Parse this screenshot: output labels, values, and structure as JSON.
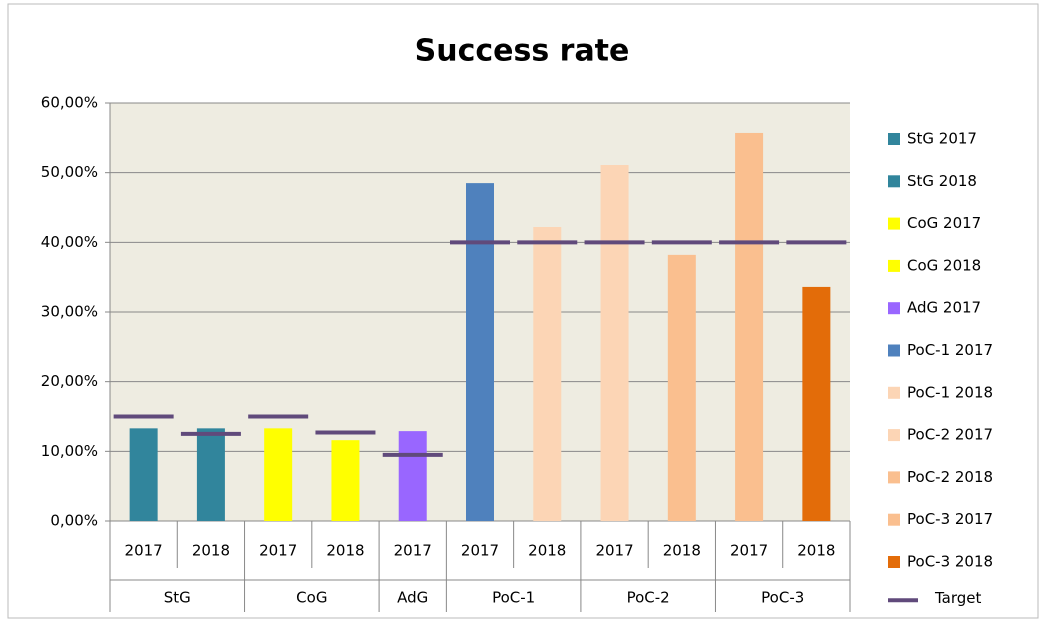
{
  "chart_data": {
    "type": "bar",
    "title": "Success rate",
    "category_groups": [
      {
        "name": "StG",
        "categories": [
          "2017",
          "2018"
        ]
      },
      {
        "name": "CoG",
        "categories": [
          "2017",
          "2018"
        ]
      },
      {
        "name": "AdG",
        "categories": [
          "2017"
        ]
      },
      {
        "name": "PoC-1",
        "categories": [
          "2017",
          "2018"
        ]
      },
      {
        "name": "PoC-2",
        "categories": [
          "2017",
          "2018"
        ]
      },
      {
        "name": "PoC-3",
        "categories": [
          "2017",
          "2018"
        ]
      }
    ],
    "series": [
      {
        "name": "StG 2017",
        "color": "#31859c",
        "values": [
          13.3,
          null,
          null,
          null,
          null,
          null,
          null,
          null,
          null,
          null,
          null
        ]
      },
      {
        "name": "StG 2018",
        "color": "#31859c",
        "values": [
          null,
          13.3,
          null,
          null,
          null,
          null,
          null,
          null,
          null,
          null,
          null
        ]
      },
      {
        "name": "CoG 2017",
        "color": "#ffff00",
        "values": [
          null,
          null,
          13.3,
          null,
          null,
          null,
          null,
          null,
          null,
          null,
          null
        ]
      },
      {
        "name": "CoG 2018",
        "color": "#ffff00",
        "values": [
          null,
          null,
          null,
          11.6,
          null,
          null,
          null,
          null,
          null,
          null,
          null
        ]
      },
      {
        "name": "AdG 2017",
        "color": "#9966ff",
        "values": [
          null,
          null,
          null,
          null,
          12.9,
          null,
          null,
          null,
          null,
          null,
          null
        ]
      },
      {
        "name": "PoC-1 2017",
        "color": "#4f81bd",
        "values": [
          null,
          null,
          null,
          null,
          null,
          48.5,
          null,
          null,
          null,
          null,
          null
        ]
      },
      {
        "name": "PoC-1 2018",
        "color": "#fcd5b5",
        "values": [
          null,
          null,
          null,
          null,
          null,
          null,
          42.2,
          null,
          null,
          null,
          null
        ]
      },
      {
        "name": "PoC-2 2017",
        "color": "#fcd5b5",
        "values": [
          null,
          null,
          null,
          null,
          null,
          null,
          null,
          51.1,
          null,
          null,
          null
        ]
      },
      {
        "name": "PoC-2 2018",
        "color": "#fabf8f",
        "values": [
          null,
          null,
          null,
          null,
          null,
          null,
          null,
          null,
          38.2,
          null,
          null
        ]
      },
      {
        "name": "PoC-3 2017",
        "color": "#fabf8f",
        "values": [
          null,
          null,
          null,
          null,
          null,
          null,
          null,
          null,
          null,
          55.7,
          null
        ]
      },
      {
        "name": "PoC-3 2018",
        "color": "#e36c09",
        "values": [
          null,
          null,
          null,
          null,
          null,
          null,
          null,
          null,
          null,
          null,
          33.6
        ]
      },
      {
        "name": "Target",
        "color": "#604a7b",
        "type": "marker",
        "values": [
          15,
          12.5,
          15,
          12.7,
          9.5,
          40,
          40,
          40,
          40,
          40,
          40
        ]
      }
    ],
    "ylim": [
      0,
      60
    ],
    "yticks": [
      {
        "value": 0,
        "label": "0,00%"
      },
      {
        "value": 10,
        "label": "10,00%"
      },
      {
        "value": 20,
        "label": "20,00%"
      },
      {
        "value": 30,
        "label": "30,00%"
      },
      {
        "value": 40,
        "label": "40,00%"
      },
      {
        "value": 50,
        "label": "50,00%"
      },
      {
        "value": 60,
        "label": "60,00%"
      }
    ],
    "grid": true,
    "plot_background": "#eeece1",
    "legend": "right"
  }
}
